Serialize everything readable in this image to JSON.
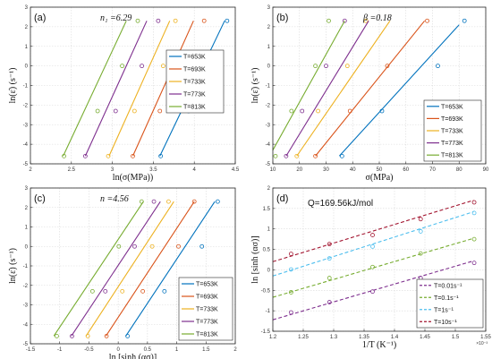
{
  "colors": [
    "#0072BD",
    "#D95319",
    "#EDB120",
    "#7E2F8E",
    "#77AC30"
  ],
  "chart_data": [
    {
      "type": "scatter",
      "panel_label": "(a)",
      "annotation": "n₁ =6.29",
      "xlabel": "ln(σ(MPa))",
      "ylabel": "ln(ε̇) (s⁻¹)",
      "xlim": [
        2,
        4.5
      ],
      "ylim": [
        -5,
        3
      ],
      "xticks": [
        2,
        2.5,
        3,
        3.5,
        4,
        4.5
      ],
      "xtick_labels": [
        "2",
        "2.5",
        "3",
        "3.5",
        "4",
        "4.5"
      ],
      "yticks": [
        -5,
        -4,
        -3,
        -2,
        -1,
        0,
        1,
        2,
        3
      ],
      "ytick_labels": [
        "-5",
        "-4",
        "-3",
        "-2",
        "-1",
        "0",
        "1",
        "2",
        "3"
      ],
      "grid": true,
      "legend_position": "middle-right",
      "y_points": [
        -4.605,
        -2.303,
        0,
        2.303
      ],
      "series": [
        {
          "name": "T=653K",
          "x": [
            3.59,
            3.93,
            4.24,
            4.4
          ],
          "line": [
            [
              3.58,
              -4.6
            ],
            [
              4.37,
              2.3
            ]
          ]
        },
        {
          "name": "T=693K",
          "x": [
            3.25,
            3.58,
            3.92,
            4.12
          ],
          "line": [
            [
              3.25,
              -4.6
            ],
            [
              3.99,
              2.3
            ]
          ]
        },
        {
          "name": "T=733K",
          "x": [
            2.95,
            3.27,
            3.62,
            3.77
          ],
          "line": [
            [
              2.96,
              -4.6
            ],
            [
              3.7,
              2.3
            ]
          ]
        },
        {
          "name": "T=773K",
          "x": [
            2.67,
            3.04,
            3.36,
            3.56
          ],
          "line": [
            [
              2.67,
              -4.6
            ],
            [
              3.42,
              2.3
            ]
          ]
        },
        {
          "name": "T=813K",
          "x": [
            2.41,
            2.82,
            3.12,
            3.31
          ],
          "line": [
            [
              2.4,
              -4.6
            ],
            [
              3.17,
              2.3
            ]
          ]
        }
      ]
    },
    {
      "type": "scatter",
      "panel_label": "(b)",
      "annotation": "β =0.18",
      "xlabel": "σ(MPa)",
      "ylabel": "ln(ε̇) (s⁻¹)",
      "xlim": [
        10,
        90
      ],
      "ylim": [
        -5,
        3
      ],
      "xticks": [
        10,
        20,
        30,
        40,
        50,
        60,
        70,
        80,
        90
      ],
      "xtick_labels": [
        "10",
        "20",
        "30",
        "40",
        "50",
        "60",
        "70",
        "80",
        "90"
      ],
      "yticks": [
        -5,
        -4,
        -3,
        -2,
        -1,
        0,
        1,
        2,
        3
      ],
      "ytick_labels": [
        "-5",
        "-4",
        "-3",
        "-2",
        "-1",
        "0",
        "1",
        "2",
        "3"
      ],
      "grid": true,
      "legend_position": "bottom-right",
      "y_points": [
        -4.605,
        -2.303,
        0,
        2.303
      ],
      "series": [
        {
          "name": "T=653K",
          "x": [
            36,
            51,
            72,
            82
          ],
          "line": [
            [
              35,
              -4.6
            ],
            [
              80,
              2.1
            ]
          ]
        },
        {
          "name": "T=693K",
          "x": [
            26,
            39,
            53,
            68
          ],
          "line": [
            [
              26,
              -4.6
            ],
            [
              67,
              2.3
            ]
          ]
        },
        {
          "name": "T=733K",
          "x": [
            19,
            27,
            38,
            45
          ],
          "line": [
            [
              19,
              -4.6
            ],
            [
              54,
              2.3
            ]
          ]
        },
        {
          "name": "T=773K",
          "x": [
            15,
            21,
            30,
            37
          ],
          "line": [
            [
              15,
              -4.6
            ],
            [
              46,
              2.3
            ]
          ]
        },
        {
          "name": "T=813K",
          "x": [
            11,
            17,
            26,
            31
          ],
          "line": [
            [
              10,
              -4.3
            ],
            [
              37,
              2.3
            ]
          ]
        }
      ]
    },
    {
      "type": "scatter",
      "panel_label": "(c)",
      "annotation": "n =4.56",
      "xlabel": "ln [sinh (ασ)]",
      "ylabel": "ln(ε̇) (s⁻¹)",
      "xlim": [
        -1.5,
        2
      ],
      "ylim": [
        -5,
        3
      ],
      "xticks": [
        -1.5,
        -1,
        -0.5,
        0,
        0.5,
        1,
        1.5,
        2
      ],
      "xtick_labels": [
        "-1.5",
        "-1",
        "-0.5",
        "0",
        "0.5",
        "1",
        "1.5",
        "2"
      ],
      "yticks": [
        -5,
        -4,
        -3,
        -2,
        -1,
        0,
        1,
        2,
        3
      ],
      "ytick_labels": [
        "-5",
        "-4",
        "-3",
        "-2",
        "-1",
        "0",
        "1",
        "2",
        "3"
      ],
      "grid": true,
      "legend_position": "bottom-right",
      "y_points": [
        -4.605,
        -2.303,
        0,
        2.303
      ],
      "series": [
        {
          "name": "T=653K",
          "x": [
            0.16,
            0.79,
            1.43,
            1.7
          ],
          "line": [
            [
              0.13,
              -4.6
            ],
            [
              1.65,
              2.3
            ]
          ]
        },
        {
          "name": "T=693K",
          "x": [
            -0.2,
            0.42,
            1.03,
            1.3
          ],
          "line": [
            [
              -0.21,
              -4.6
            ],
            [
              1.3,
              2.3
            ]
          ]
        },
        {
          "name": "T=733K",
          "x": [
            -0.52,
            0.07,
            0.58,
            0.86
          ],
          "line": [
            [
              -0.55,
              -4.6
            ],
            [
              0.95,
              2.3
            ]
          ]
        },
        {
          "name": "T=773K",
          "x": [
            -0.79,
            -0.22,
            0.28,
            0.61
          ],
          "line": [
            [
              -0.8,
              -4.6
            ],
            [
              0.72,
              2.3
            ]
          ]
        },
        {
          "name": "T=813K",
          "x": [
            -1.05,
            -0.44,
            0.01,
            0.4
          ],
          "line": [
            [
              -1.1,
              -4.6
            ],
            [
              0.43,
              2.3
            ]
          ]
        }
      ]
    },
    {
      "type": "scatter",
      "panel_label": "(d)",
      "annotation": "Q=169.56kJ/mol",
      "xlabel": "1/T (K⁻¹)",
      "ylabel": "ln [sinh (ασ)]",
      "x_exponent": "×10⁻³",
      "xlim": [
        1.2,
        1.55
      ],
      "ylim": [
        -1.5,
        2
      ],
      "xticks": [
        1.2,
        1.25,
        1.3,
        1.35,
        1.4,
        1.45,
        1.5,
        1.55
      ],
      "xtick_labels": [
        "1.2",
        "1.25",
        "1.3",
        "1.35",
        "1.4",
        "1.45",
        "1.5",
        "1.55"
      ],
      "yticks": [
        -1.5,
        -1,
        -0.5,
        0,
        0.5,
        1,
        1.5,
        2
      ],
      "ytick_labels": [
        "-1.5",
        "-1",
        "-0.5",
        "0",
        "0.5",
        "1",
        "1.5",
        "2"
      ],
      "grid": true,
      "legend_position": "bottom-right",
      "x_points": [
        1.23,
        1.293,
        1.364,
        1.443,
        1.531
      ],
      "series": [
        {
          "name": "T=0.01s⁻¹",
          "color": "#7E2F8E",
          "y": [
            -1.04,
            -0.79,
            -0.53,
            -0.2,
            0.17
          ],
          "line": [
            [
              1.2,
              -1.22
            ],
            [
              1.53,
              0.22
            ]
          ]
        },
        {
          "name": "T=0.1s⁻¹",
          "color": "#77AC30",
          "y": [
            -0.55,
            -0.2,
            0.07,
            0.4,
            0.75
          ],
          "line": [
            [
              1.2,
              -0.67
            ],
            [
              1.53,
              0.77
            ]
          ]
        },
        {
          "name": "T=1s⁻¹",
          "color": "#4DBEEE",
          "y": [
            0.01,
            0.28,
            0.57,
            0.94,
            1.39
          ],
          "line": [
            [
              1.2,
              -0.15
            ],
            [
              1.53,
              1.42
            ]
          ]
        },
        {
          "name": "T=10s⁻¹",
          "color": "#A2142F",
          "y": [
            0.39,
            0.63,
            0.85,
            1.24,
            1.65
          ],
          "line": [
            [
              1.2,
              0.2
            ],
            [
              1.53,
              1.7
            ]
          ]
        }
      ]
    }
  ]
}
